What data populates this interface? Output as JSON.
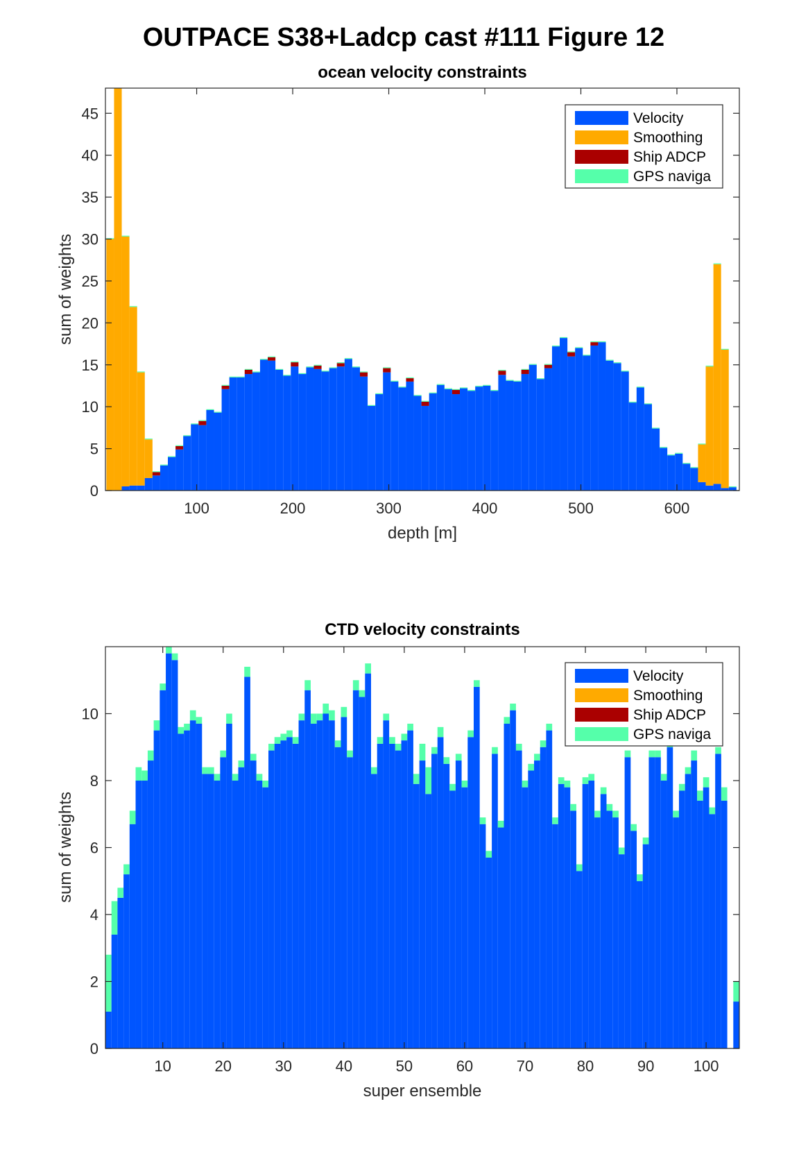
{
  "figure": {
    "title": "OUTPACE S38+Ladcp cast #111  Figure 12"
  },
  "colors": {
    "velocity": "#0055FF",
    "smoothing": "#FFAA00",
    "ship_adcp": "#AA0000",
    "gps": "#55FFAA"
  },
  "chart_data": [
    {
      "type": "bar",
      "stacked": true,
      "title": "ocean velocity constraints",
      "xlabel": "depth [m]",
      "ylabel": "sum of weights",
      "xlim": [
        5,
        665
      ],
      "ylim": [
        0,
        48
      ],
      "xticks": [
        100,
        200,
        300,
        400,
        500,
        600
      ],
      "yticks": [
        0,
        5,
        10,
        15,
        20,
        25,
        30,
        35,
        40,
        45
      ],
      "legend": [
        "Velocity",
        "Smoothing",
        "Ship ADCP",
        "GPS naviga"
      ],
      "legend_position": "top-right",
      "bin_width": 8,
      "x": [
        10,
        18,
        26,
        34,
        42,
        50,
        58,
        66,
        74,
        82,
        90,
        98,
        106,
        114,
        122,
        130,
        138,
        146,
        154,
        162,
        170,
        178,
        186,
        194,
        202,
        210,
        218,
        226,
        234,
        242,
        250,
        258,
        266,
        274,
        282,
        290,
        298,
        306,
        314,
        322,
        330,
        338,
        346,
        354,
        362,
        370,
        378,
        386,
        394,
        402,
        410,
        418,
        426,
        434,
        442,
        450,
        458,
        466,
        474,
        482,
        490,
        498,
        506,
        514,
        522,
        530,
        538,
        546,
        554,
        562,
        570,
        578,
        586,
        594,
        602,
        610,
        618,
        626,
        634,
        642,
        650,
        658
      ],
      "series": [
        {
          "name": "Velocity",
          "values": [
            0,
            0,
            0.5,
            0.6,
            0.6,
            1.5,
            1.8,
            3.0,
            4.0,
            4.9,
            6.5,
            7.9,
            7.8,
            9.6,
            9.3,
            12.1,
            13.5,
            13.5,
            13.9,
            14.1,
            15.6,
            15.5,
            14.4,
            13.7,
            14.8,
            13.9,
            14.7,
            14.5,
            14.2,
            14.6,
            14.8,
            15.7,
            14.7,
            13.6,
            10.1,
            11.5,
            14.1,
            13.0,
            12.3,
            13.0,
            11.3,
            10.1,
            11.6,
            12.6,
            12.1,
            11.5,
            12.2,
            11.9,
            12.4,
            12.5,
            11.9,
            13.8,
            13.1,
            13.0,
            13.9,
            15.0,
            13.3,
            14.6,
            17.2,
            18.2,
            16.0,
            17.0,
            16.1,
            17.3,
            17.7,
            15.5,
            15.2,
            14.2,
            10.5,
            12.3,
            10.3,
            7.4,
            5.1,
            4.2,
            4.4,
            3.2,
            2.7,
            1.0,
            0.6,
            0.8,
            0.3,
            0.4
          ]
        },
        {
          "name": "Smoothing",
          "values": [
            30.0,
            48.0,
            29.8,
            21.3,
            13.5,
            4.6,
            0,
            0,
            0,
            0,
            0,
            0,
            0,
            0,
            0,
            0,
            0,
            0,
            0,
            0,
            0,
            0,
            0,
            0,
            0,
            0,
            0,
            0,
            0,
            0,
            0,
            0,
            0,
            0,
            0,
            0,
            0,
            0,
            0,
            0,
            0,
            0,
            0,
            0,
            0,
            0,
            0,
            0,
            0,
            0,
            0,
            0,
            0,
            0,
            0,
            0,
            0,
            0,
            0,
            0,
            0,
            0,
            0,
            0,
            0,
            0,
            0,
            0,
            0,
            0,
            0,
            0,
            0,
            0,
            0,
            0,
            0,
            4.5,
            14.2,
            26.2,
            16.5,
            0
          ]
        },
        {
          "name": "Ship ADCP",
          "values": [
            0,
            0,
            0,
            0,
            0,
            0,
            0.4,
            0,
            0,
            0.4,
            0,
            0,
            0.5,
            0,
            0,
            0.4,
            0,
            0,
            0.5,
            0,
            0,
            0.4,
            0,
            0,
            0.5,
            0,
            0,
            0.4,
            0,
            0,
            0.4,
            0,
            0,
            0.5,
            0,
            0,
            0.5,
            0,
            0,
            0.4,
            0,
            0.5,
            0,
            0,
            0,
            0.5,
            0,
            0,
            0,
            0,
            0,
            0.5,
            0,
            0,
            0.5,
            0,
            0,
            0.4,
            0,
            0,
            0.5,
            0,
            0,
            0.4,
            0,
            0,
            0,
            0,
            0,
            0,
            0,
            0,
            0,
            0,
            0,
            0,
            0,
            0,
            0,
            0,
            0,
            0
          ]
        },
        {
          "name": "GPS naviga",
          "values": [
            0.1,
            0.1,
            0.1,
            0.1,
            0.1,
            0.1,
            0.1,
            0.1,
            0.1,
            0.1,
            0.1,
            0.1,
            0.1,
            0.1,
            0.1,
            0.1,
            0.1,
            0.1,
            0.1,
            0.1,
            0.1,
            0.1,
            0.1,
            0.1,
            0.1,
            0.1,
            0.1,
            0.1,
            0.1,
            0.1,
            0.1,
            0.1,
            0.1,
            0.1,
            0.1,
            0.1,
            0.1,
            0.1,
            0.1,
            0.1,
            0.1,
            0.1,
            0.1,
            0.1,
            0.1,
            0.1,
            0.1,
            0.1,
            0.1,
            0.1,
            0.1,
            0.1,
            0.1,
            0.1,
            0.1,
            0.1,
            0.1,
            0.1,
            0.1,
            0.1,
            0.1,
            0.1,
            0.1,
            0.1,
            0.1,
            0.1,
            0.1,
            0.1,
            0.1,
            0.1,
            0.1,
            0.1,
            0.1,
            0.1,
            0.1,
            0.1,
            0.1,
            0.1,
            0.1,
            0.1,
            0.1,
            0.1
          ]
        }
      ]
    },
    {
      "type": "bar",
      "stacked": true,
      "title": "CTD velocity constraints",
      "xlabel": "super ensemble",
      "ylabel": "sum of weights",
      "xlim": [
        0.5,
        105.5
      ],
      "ylim": [
        0,
        12
      ],
      "xticks": [
        10,
        20,
        30,
        40,
        50,
        60,
        70,
        80,
        90,
        100
      ],
      "yticks": [
        0,
        2,
        4,
        6,
        8,
        10
      ],
      "legend": [
        "Velocity",
        "Smoothing",
        "Ship ADCP",
        "GPS naviga"
      ],
      "legend_position": "top-right",
      "bin_width": 1,
      "x": [
        1,
        2,
        3,
        4,
        5,
        6,
        7,
        8,
        9,
        10,
        11,
        12,
        13,
        14,
        15,
        16,
        17,
        18,
        19,
        20,
        21,
        22,
        23,
        24,
        25,
        26,
        27,
        28,
        29,
        30,
        31,
        32,
        33,
        34,
        35,
        36,
        37,
        38,
        39,
        40,
        41,
        42,
        43,
        44,
        45,
        46,
        47,
        48,
        49,
        50,
        51,
        52,
        53,
        54,
        55,
        56,
        57,
        58,
        59,
        60,
        61,
        62,
        63,
        64,
        65,
        66,
        67,
        68,
        69,
        70,
        71,
        72,
        73,
        74,
        75,
        76,
        77,
        78,
        79,
        80,
        81,
        82,
        83,
        84,
        85,
        86,
        87,
        88,
        89,
        90,
        91,
        92,
        93,
        94,
        95,
        96,
        97,
        98,
        99,
        100,
        101,
        102,
        103,
        104,
        105
      ],
      "series": [
        {
          "name": "Velocity",
          "values": [
            1.1,
            3.4,
            4.5,
            5.2,
            6.7,
            8.0,
            8.0,
            8.6,
            9.5,
            10.7,
            11.8,
            11.6,
            9.4,
            9.5,
            9.8,
            9.7,
            8.2,
            8.2,
            8.0,
            8.7,
            9.7,
            8.0,
            8.4,
            11.1,
            8.6,
            8.0,
            7.8,
            8.9,
            9.1,
            9.2,
            9.3,
            9.1,
            9.8,
            10.7,
            9.7,
            9.8,
            10.0,
            9.8,
            9.0,
            9.9,
            8.7,
            10.7,
            10.5,
            11.2,
            8.2,
            9.1,
            9.8,
            9.1,
            8.9,
            9.2,
            9.5,
            7.9,
            8.6,
            7.6,
            8.8,
            9.3,
            8.5,
            7.7,
            8.6,
            7.8,
            9.3,
            10.8,
            6.7,
            5.7,
            8.8,
            6.6,
            9.7,
            10.1,
            8.9,
            7.8,
            8.3,
            8.6,
            9.0,
            9.5,
            6.7,
            7.9,
            7.8,
            7.1,
            5.3,
            7.9,
            8.0,
            6.9,
            7.6,
            7.1,
            6.9,
            5.8,
            8.7,
            6.5,
            5.0,
            6.1,
            8.7,
            8.7,
            8.0,
            9.0,
            6.9,
            7.7,
            8.2,
            8.6,
            7.4,
            7.8,
            7.0,
            8.8,
            7.4,
            0,
            1.4
          ]
        },
        {
          "name": "Smoothing",
          "values": [
            0,
            0,
            0,
            0,
            0,
            0,
            0,
            0,
            0,
            0,
            0,
            0,
            0,
            0,
            0,
            0,
            0,
            0,
            0,
            0,
            0,
            0,
            0,
            0,
            0,
            0,
            0,
            0,
            0,
            0,
            0,
            0,
            0,
            0,
            0,
            0,
            0,
            0,
            0,
            0,
            0,
            0,
            0,
            0,
            0,
            0,
            0,
            0,
            0,
            0,
            0,
            0,
            0,
            0,
            0,
            0,
            0,
            0,
            0,
            0,
            0,
            0,
            0,
            0,
            0,
            0,
            0,
            0,
            0,
            0,
            0,
            0,
            0,
            0,
            0,
            0,
            0,
            0,
            0,
            0,
            0,
            0,
            0,
            0,
            0,
            0,
            0,
            0,
            0,
            0,
            0,
            0,
            0,
            0,
            0,
            0,
            0,
            0,
            0,
            0,
            0,
            0,
            0,
            0,
            0
          ]
        },
        {
          "name": "Ship ADCP",
          "values": [
            0,
            0,
            0,
            0,
            0,
            0,
            0,
            0,
            0,
            0,
            0,
            0,
            0,
            0,
            0,
            0,
            0,
            0,
            0,
            0,
            0,
            0,
            0,
            0,
            0,
            0,
            0,
            0,
            0,
            0,
            0,
            0,
            0,
            0,
            0,
            0,
            0,
            0,
            0,
            0,
            0,
            0,
            0,
            0,
            0,
            0,
            0,
            0,
            0,
            0,
            0,
            0,
            0,
            0,
            0,
            0,
            0,
            0,
            0,
            0,
            0,
            0,
            0,
            0,
            0,
            0,
            0,
            0,
            0,
            0,
            0,
            0,
            0,
            0,
            0,
            0,
            0,
            0,
            0,
            0,
            0,
            0,
            0,
            0,
            0,
            0,
            0,
            0,
            0,
            0,
            0,
            0,
            0,
            0,
            0,
            0,
            0,
            0,
            0,
            0,
            0,
            0,
            0,
            0,
            0
          ]
        },
        {
          "name": "GPS naviga",
          "values": [
            1.7,
            1.0,
            0.3,
            0.3,
            0.4,
            0.4,
            0.3,
            0.3,
            0.3,
            0.2,
            0.3,
            0.2,
            0.2,
            0.2,
            0.3,
            0.2,
            0.2,
            0.2,
            0.2,
            0.2,
            0.3,
            0.2,
            0.2,
            0.3,
            0.2,
            0.2,
            0.2,
            0.2,
            0.2,
            0.2,
            0.2,
            0.2,
            0.2,
            0.3,
            0.3,
            0.2,
            0.3,
            0.3,
            0.2,
            0.3,
            0.2,
            0.3,
            0.2,
            0.3,
            0.2,
            0.2,
            0.2,
            0.2,
            0.2,
            0.2,
            0.2,
            0.3,
            0.5,
            0.8,
            0.2,
            0.3,
            0.2,
            0.2,
            0.2,
            0.2,
            0.2,
            0.2,
            0.2,
            0.2,
            0.2,
            0.2,
            0.2,
            0.2,
            0.2,
            0.2,
            0.2,
            0.2,
            0.2,
            0.2,
            0.2,
            0.2,
            0.2,
            0.2,
            0.2,
            0.2,
            0.2,
            0.2,
            0.2,
            0.2,
            0.2,
            0.2,
            0.2,
            0.2,
            0.2,
            0.2,
            0.2,
            0.2,
            0.2,
            0.2,
            0.2,
            0.2,
            0.2,
            0.3,
            0.3,
            0.3,
            0.2,
            0.2,
            0.4,
            0,
            0.6
          ]
        }
      ]
    }
  ]
}
